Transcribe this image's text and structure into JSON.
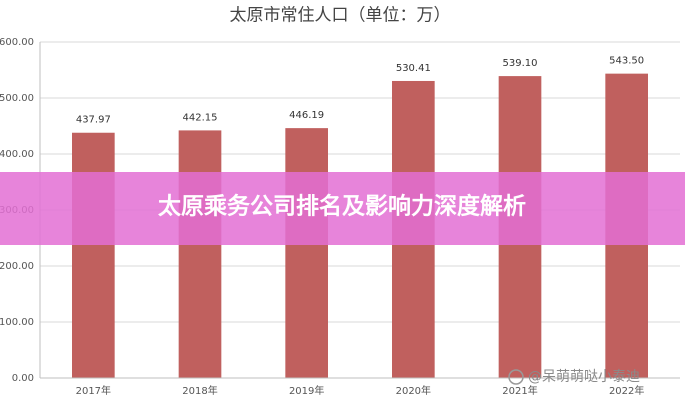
{
  "chart_data": {
    "type": "bar",
    "title": "太原市常住人口（单位：万）",
    "categories": [
      "2017年",
      "2018年",
      "2019年",
      "2020年",
      "2021年",
      "2022年"
    ],
    "values": [
      437.97,
      442.15,
      446.19,
      530.41,
      539.1,
      543.5
    ],
    "value_labels": [
      "437.97",
      "442.15",
      "446.19",
      "530.41",
      "539.10",
      "543.50"
    ],
    "color": "#c0605e",
    "ylim": [
      0,
      600
    ],
    "yticks": [
      {
        "value": 0,
        "label": "0.00"
      },
      {
        "value": 100,
        "label": "100.00"
      },
      {
        "value": 200,
        "label": "200.00"
      },
      {
        "value": 300,
        "label": "300.00"
      },
      {
        "value": 400,
        "label": "400.00"
      },
      {
        "value": 500,
        "label": "500.00"
      },
      {
        "value": 600,
        "label": "600.00"
      }
    ],
    "grid": true
  },
  "overlay": {
    "banner": "太原乘务公司排名及影响力深度解析",
    "watermark": "@呆萌萌哒小泰迪"
  }
}
